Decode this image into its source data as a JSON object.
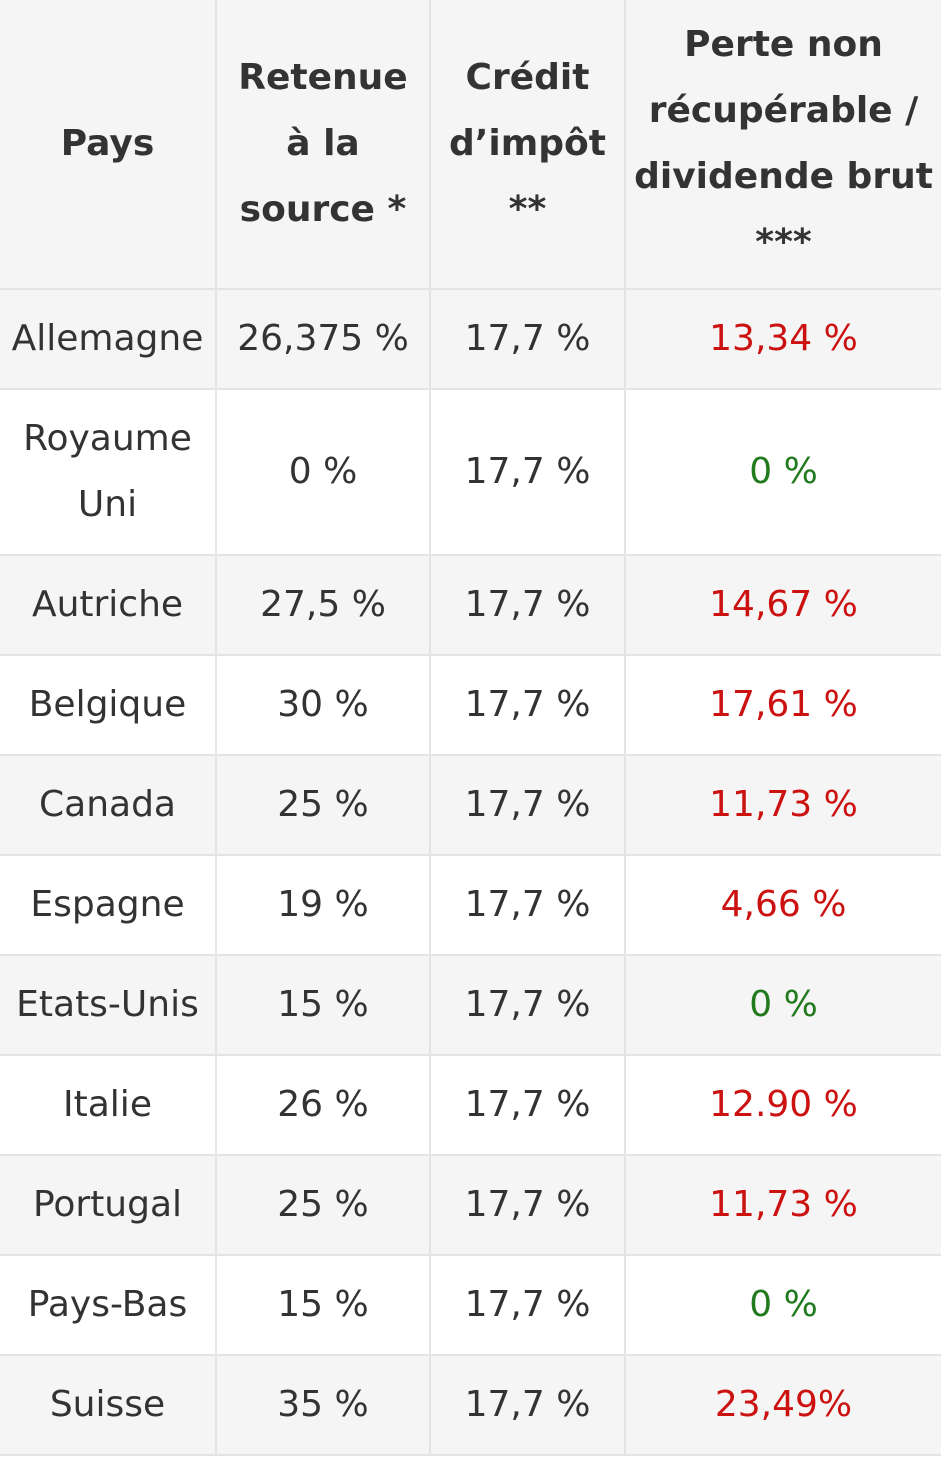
{
  "table": {
    "headers": [
      "Pays",
      "Retenue à la source *",
      "Crédit d’impôt **",
      "Perte non récupérable / dividende brut ***"
    ],
    "rows": [
      {
        "pays": "Allemagne",
        "retenue": "26,375 %",
        "credit": "17,7 %",
        "perte": "13,34 %",
        "perte_color": "red"
      },
      {
        "pays": "Royaume Uni",
        "retenue": "0 %",
        "credit": "17,7 %",
        "perte": "0 %",
        "perte_color": "green"
      },
      {
        "pays": "Autriche",
        "retenue": "27,5 %",
        "credit": "17,7 %",
        "perte": "14,67 %",
        "perte_color": "red"
      },
      {
        "pays": "Belgique",
        "retenue": "30 %",
        "credit": "17,7 %",
        "perte": "17,61 %",
        "perte_color": "red"
      },
      {
        "pays": "Canada",
        "retenue": "25 %",
        "credit": "17,7 %",
        "perte": "11,73 %",
        "perte_color": "red"
      },
      {
        "pays": "Espagne",
        "retenue": "19 %",
        "credit": "17,7 %",
        "perte": "4,66 %",
        "perte_color": "red"
      },
      {
        "pays": "Etats-Unis",
        "retenue": "15 %",
        "credit": "17,7 %",
        "perte": "0 %",
        "perte_color": "green"
      },
      {
        "pays": "Italie",
        "retenue": "26 %",
        "credit": "17,7 %",
        "perte": "12.90 %",
        "perte_color": "red"
      },
      {
        "pays": "Portugal",
        "retenue": "25 %",
        "credit": "17,7 %",
        "perte": "11,73 %",
        "perte_color": "red"
      },
      {
        "pays": "Pays-Bas",
        "retenue": "15 %",
        "credit": "17,7 %",
        "perte": "0 %",
        "perte_color": "green"
      },
      {
        "pays": "Suisse",
        "retenue": "35 %",
        "credit": "17,7 %",
        "perte": "23,49%",
        "perte_color": "red"
      }
    ]
  },
  "colors": {
    "loss_red": "#cc1111",
    "loss_green": "#227a1f"
  }
}
